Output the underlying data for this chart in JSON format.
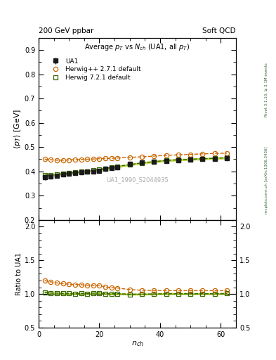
{
  "title_top_left": "200 GeV ppbar",
  "title_top_right": "Soft QCD",
  "main_title": "Average $p_T$ vs $N_{ch}$ (UA1, all $p_T$)",
  "ylabel_main": "$\\langle p_T \\rangle$ [GeV]",
  "ylabel_ratio": "Ratio to UA1",
  "xlabel": "$n_{ch}$",
  "watermark": "UA1_1990_S2044935",
  "right_label_top": "Rivet 3.1.10, ≥ 3.1M events",
  "right_label_bot": "mcplots.cern.ch [arXiv:1306.3436]",
  "xlim": [
    0,
    65
  ],
  "ylim_main": [
    0.2,
    0.95
  ],
  "ylim_ratio": [
    0.5,
    2.1
  ],
  "ua1_x": [
    2,
    4,
    6,
    8,
    10,
    12,
    14,
    16,
    18,
    20,
    22,
    24,
    26,
    30,
    34,
    38,
    42,
    46,
    50,
    54,
    58,
    62
  ],
  "ua1_y": [
    0.375,
    0.38,
    0.383,
    0.387,
    0.39,
    0.393,
    0.395,
    0.398,
    0.4,
    0.402,
    0.41,
    0.415,
    0.418,
    0.43,
    0.436,
    0.44,
    0.443,
    0.446,
    0.448,
    0.45,
    0.452,
    0.453
  ],
  "ua1_yerr": [
    0.01,
    0.008,
    0.007,
    0.006,
    0.006,
    0.005,
    0.005,
    0.005,
    0.005,
    0.005,
    0.005,
    0.005,
    0.005,
    0.005,
    0.005,
    0.005,
    0.005,
    0.005,
    0.005,
    0.005,
    0.005,
    0.006
  ],
  "hpp_x": [
    2,
    4,
    6,
    8,
    10,
    12,
    14,
    16,
    18,
    20,
    22,
    24,
    26,
    30,
    34,
    38,
    42,
    46,
    50,
    54,
    58,
    62
  ],
  "hpp_y": [
    0.45,
    0.448,
    0.446,
    0.446,
    0.447,
    0.448,
    0.449,
    0.45,
    0.451,
    0.452,
    0.453,
    0.454,
    0.455,
    0.458,
    0.46,
    0.463,
    0.466,
    0.468,
    0.47,
    0.472,
    0.474,
    0.475
  ],
  "h721_x": [
    2,
    4,
    6,
    8,
    10,
    12,
    14,
    16,
    18,
    20,
    22,
    24,
    26,
    30,
    34,
    38,
    42,
    46,
    50,
    54,
    58,
    62
  ],
  "h721_y": [
    0.385,
    0.385,
    0.388,
    0.39,
    0.393,
    0.395,
    0.398,
    0.4,
    0.405,
    0.408,
    0.412,
    0.416,
    0.42,
    0.428,
    0.435,
    0.44,
    0.445,
    0.448,
    0.45,
    0.452,
    0.454,
    0.456
  ],
  "color_ua1": "#1a1a1a",
  "color_hpp": "#cc6600",
  "color_h721": "#336600",
  "color_h721_band": "#aacc00",
  "color_right_label": "#336633",
  "color_watermark": "#aaaaaa"
}
